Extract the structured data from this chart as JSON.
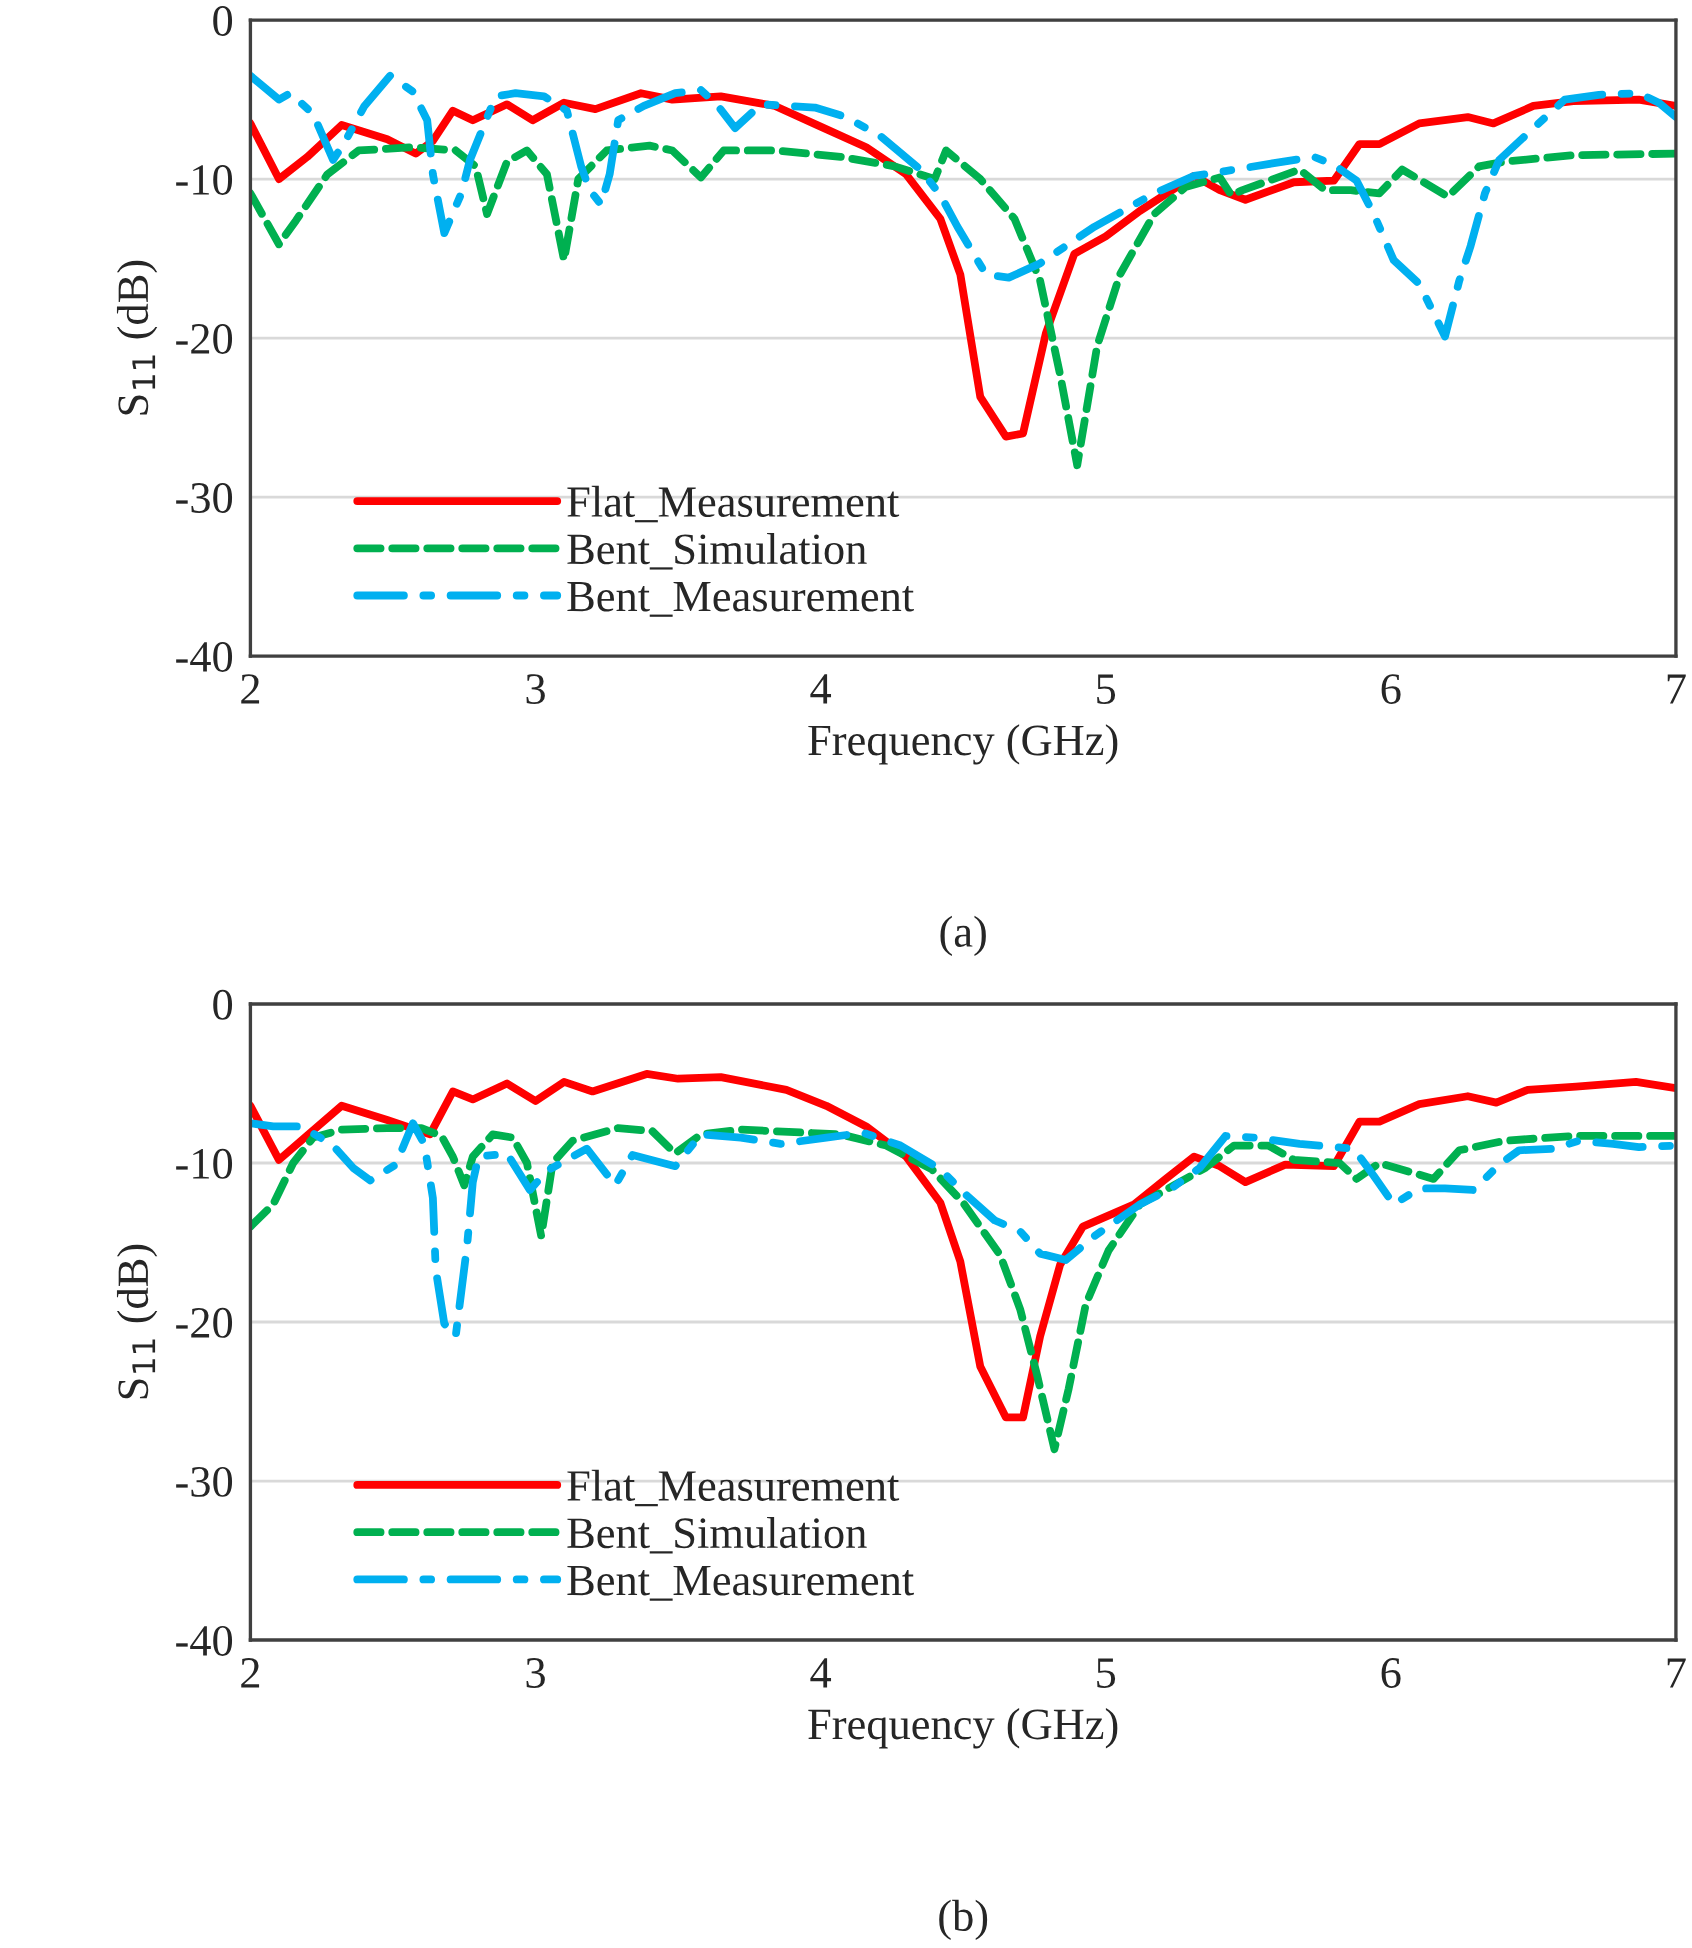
{
  "chart_data": [
    {
      "type": "line",
      "xlabel": "Frequency (GHz)",
      "ylabel": "S$_{11}$ (dB)",
      "xlim": [
        2,
        7
      ],
      "ylim": [
        -40,
        0
      ],
      "xticks": [
        2,
        3,
        4,
        5,
        6,
        7
      ],
      "yticks": [
        -40,
        -30,
        -20,
        -10,
        0
      ],
      "grid": "y",
      "legend": "bottom left",
      "annotations": [
        "(a)"
      ],
      "series": [
        {
          "name": "Flat_Measurement",
          "color": "#ff0000",
          "line_style": "solid",
          "x": [
            2.0,
            2.1,
            2.2,
            2.32,
            2.48,
            2.58,
            2.64,
            2.71,
            2.78,
            2.9,
            2.99,
            3.1,
            3.21,
            3.37,
            3.48,
            3.65,
            3.84,
            4.0,
            4.16,
            4.3,
            4.42,
            4.49,
            4.56,
            4.65,
            4.71,
            4.79,
            4.89,
            5.0,
            5.12,
            5.31,
            5.4,
            5.49,
            5.66,
            5.8,
            5.89,
            5.96,
            6.1,
            6.27,
            6.36,
            6.5,
            6.64,
            6.87,
            7.0
          ],
          "values": [
            -6.5,
            -10,
            -8.6,
            -6.6,
            -7.5,
            -8.4,
            -7.6,
            -5.7,
            -6.3,
            -5.3,
            -6.3,
            -5.2,
            -5.6,
            -4.6,
            -5,
            -4.8,
            -5.4,
            -6.7,
            -8,
            -9.7,
            -12.5,
            -16,
            -23.7,
            -26.2,
            -26,
            -19.7,
            -14.7,
            -13.6,
            -12,
            -9.8,
            -10.7,
            -11.3,
            -10.2,
            -10.1,
            -7.8,
            -7.8,
            -6.5,
            -6.1,
            -6.5,
            -5.4,
            -5.1,
            -5,
            -5.4
          ]
        },
        {
          "name": "Bent_Simulation",
          "color": "#00b050",
          "line_style": "dashed",
          "x": [
            2.0,
            2.1,
            2.16,
            2.27,
            2.38,
            2.57,
            2.72,
            2.79,
            2.83,
            2.9,
            2.97,
            3.04,
            3.1,
            3.15,
            3.25,
            3.4,
            3.48,
            3.58,
            3.66,
            3.84,
            4.07,
            4.26,
            4.4,
            4.44,
            4.56,
            4.68,
            4.77,
            4.84,
            4.9,
            4.97,
            5.05,
            5.17,
            5.28,
            5.4,
            5.44,
            5.48,
            5.68,
            5.77,
            5.86,
            5.96,
            6.04,
            6.2,
            6.31,
            6.4,
            6.64,
            7.0
          ],
          "values": [
            -10.9,
            -14.1,
            -12.6,
            -9.7,
            -8.2,
            -8,
            -8.2,
            -9.2,
            -12.2,
            -8.9,
            -8.2,
            -9.7,
            -15.1,
            -10,
            -8.2,
            -7.9,
            -8.2,
            -9.9,
            -8.2,
            -8.2,
            -8.6,
            -9.2,
            -10,
            -8.2,
            -10,
            -12.5,
            -16.4,
            -22.3,
            -28,
            -20.5,
            -16,
            -12.2,
            -10.5,
            -9.9,
            -11,
            -10.7,
            -9.4,
            -10.7,
            -10.7,
            -10.9,
            -9.4,
            -11.1,
            -9.2,
            -8.9,
            -8.5,
            -8.4
          ]
        },
        {
          "name": "Bent_Measurement",
          "color": "#00b0f0",
          "line_style": "dashdot",
          "x": [
            2.0,
            2.1,
            2.14,
            2.22,
            2.29,
            2.33,
            2.4,
            2.49,
            2.57,
            2.62,
            2.64,
            2.68,
            2.74,
            2.77,
            2.86,
            2.93,
            3.03,
            3.11,
            3.16,
            3.19,
            3.23,
            3.26,
            3.29,
            3.38,
            3.49,
            3.58,
            3.64,
            3.7,
            3.79,
            3.98,
            4.09,
            4.21,
            4.35,
            4.42,
            4.48,
            4.58,
            4.66,
            4.77,
            4.96,
            5.06,
            5.17,
            5.31,
            5.42,
            5.59,
            5.73,
            5.8,
            5.88,
            5.94,
            6.01,
            6.1,
            6.19,
            6.24,
            6.28,
            6.33,
            6.38,
            6.47,
            6.61,
            6.73,
            6.87,
            6.94,
            7.0
          ],
          "values": [
            -3.5,
            -5,
            -4.6,
            -5.9,
            -8.8,
            -7.7,
            -5.4,
            -3.5,
            -4.5,
            -6.3,
            -9.7,
            -13.4,
            -10.9,
            -8.8,
            -4.8,
            -4.6,
            -4.8,
            -5.7,
            -9.2,
            -10.7,
            -11.6,
            -9.7,
            -6.3,
            -5.4,
            -4.6,
            -4.4,
            -5.4,
            -6.8,
            -5.3,
            -5.5,
            -6.1,
            -7.3,
            -9.4,
            -11,
            -13,
            -16,
            -16.2,
            -15.3,
            -13,
            -12,
            -10.9,
            -9.8,
            -9.5,
            -9,
            -8.6,
            -9.1,
            -10.1,
            -12.2,
            -15.1,
            -16.6,
            -19.9,
            -16.4,
            -14.2,
            -10.9,
            -8.8,
            -7.3,
            -5,
            -4.7,
            -4.6,
            -5.2,
            -6.1
          ]
        }
      ]
    },
    {
      "type": "line",
      "xlabel": "Frequency (GHz)",
      "ylabel": "S$_{11}$ (dB)",
      "xlim": [
        2,
        7
      ],
      "ylim": [
        -40,
        0
      ],
      "xticks": [
        2,
        3,
        4,
        5,
        6,
        7
      ],
      "yticks": [
        -40,
        -30,
        -20,
        -10,
        0
      ],
      "grid": "y",
      "legend": "bottom left",
      "annotations": [
        "(b)"
      ],
      "series": [
        {
          "name": "Flat_Measurement",
          "color": "#ff0000",
          "line_style": "solid",
          "x": [
            2.0,
            2.1,
            2.32,
            2.48,
            2.63,
            2.71,
            2.78,
            2.9,
            3.0,
            3.1,
            3.2,
            3.39,
            3.5,
            3.65,
            3.88,
            4.02,
            4.16,
            4.3,
            4.42,
            4.49,
            4.56,
            4.65,
            4.71,
            4.77,
            4.84,
            4.92,
            5.1,
            5.21,
            5.31,
            5.4,
            5.49,
            5.63,
            5.8,
            5.89,
            5.96,
            6.1,
            6.27,
            6.37,
            6.48,
            6.65,
            6.86,
            7.0
          ],
          "values": [
            -6.4,
            -9.8,
            -6.4,
            -7.3,
            -8.2,
            -5.5,
            -6,
            -5,
            -6.1,
            -4.9,
            -5.5,
            -4.4,
            -4.7,
            -4.6,
            -5.4,
            -6.4,
            -7.7,
            -9.6,
            -12.5,
            -16.2,
            -22.8,
            -26,
            -26,
            -20.9,
            -16.4,
            -14,
            -12.6,
            -11,
            -9.6,
            -10.2,
            -11.2,
            -10.1,
            -10.2,
            -7.4,
            -7.4,
            -6.3,
            -5.8,
            -6.2,
            -5.4,
            -5.2,
            -4.9,
            -5.3
          ]
        },
        {
          "name": "Bent_Simulation",
          "color": "#00b050",
          "line_style": "dashed",
          "x": [
            2.0,
            2.08,
            2.15,
            2.22,
            2.32,
            2.48,
            2.6,
            2.67,
            2.71,
            2.75,
            2.78,
            2.85,
            2.92,
            2.97,
            3.02,
            3.06,
            3.13,
            3.29,
            3.41,
            3.49,
            3.58,
            3.72,
            4.07,
            4.23,
            4.39,
            4.5,
            4.63,
            4.7,
            4.76,
            4.82,
            4.87,
            4.93,
            5.01,
            5.12,
            5.24,
            5.35,
            5.45,
            5.57,
            5.66,
            5.82,
            5.88,
            5.96,
            6.15,
            6.24,
            6.4,
            6.64,
            7.0
          ],
          "values": [
            -14,
            -12.6,
            -10,
            -8.4,
            -7.9,
            -7.8,
            -7.8,
            -8.3,
            -9.6,
            -11.4,
            -9.6,
            -8.2,
            -8.4,
            -10,
            -14.6,
            -10,
            -8.6,
            -7.8,
            -8,
            -9.4,
            -8.2,
            -7.9,
            -8.2,
            -8.9,
            -10.4,
            -12.5,
            -15.8,
            -19.2,
            -23.4,
            -28,
            -24.2,
            -18.9,
            -15.5,
            -12.6,
            -11.4,
            -10.3,
            -8.9,
            -8.9,
            -9.8,
            -10,
            -11,
            -10,
            -11,
            -9.2,
            -8.6,
            -8.3,
            -8.3
          ]
        },
        {
          "name": "Bent_Measurement",
          "color": "#00b0f0",
          "line_style": "dashdot",
          "x": [
            2.0,
            2.08,
            2.18,
            2.29,
            2.36,
            2.42,
            2.51,
            2.57,
            2.61,
            2.64,
            2.65,
            2.68,
            2.72,
            2.76,
            2.78,
            2.8,
            2.9,
            2.98,
            3.04,
            3.18,
            3.28,
            3.34,
            3.49,
            3.58,
            3.72,
            3.86,
            4.02,
            4.15,
            4.28,
            4.42,
            4.51,
            4.61,
            4.7,
            4.77,
            4.86,
            4.96,
            5.12,
            5.23,
            5.33,
            5.42,
            5.52,
            5.68,
            5.87,
            5.94,
            6.01,
            6.1,
            6.19,
            6.29,
            6.38,
            6.45,
            6.57,
            6.66,
            6.78,
            6.87,
            7.0
          ],
          "values": [
            -7.5,
            -7.7,
            -7.7,
            -8.9,
            -10.3,
            -11.1,
            -10.1,
            -7.5,
            -8.8,
            -12.2,
            -16.7,
            -20.1,
            -20.9,
            -15.2,
            -11.2,
            -9.6,
            -9.4,
            -11.7,
            -10.5,
            -9.1,
            -11.4,
            -9.5,
            -10.2,
            -8.2,
            -8.4,
            -8.8,
            -8.4,
            -8.1,
            -8.9,
            -10.4,
            -12,
            -13.6,
            -14.3,
            -15.7,
            -16.1,
            -14.6,
            -12.6,
            -11.6,
            -10.3,
            -8.3,
            -8.4,
            -8.8,
            -9.1,
            -10.8,
            -12.6,
            -11.6,
            -11.6,
            -11.7,
            -10.1,
            -9.2,
            -9.1,
            -8.6,
            -8.8,
            -9,
            -8.9
          ]
        }
      ]
    }
  ]
}
